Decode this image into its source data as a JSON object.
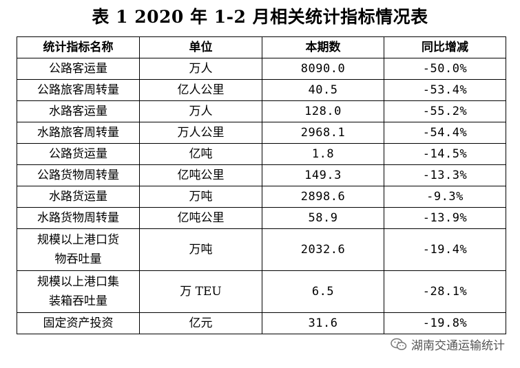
{
  "title": "表 1  2020 年 1-2 月相关统计指标情况表",
  "table": {
    "headers": [
      "统计指标名称",
      "单位",
      "本期数",
      "同比增减"
    ],
    "rows": [
      {
        "name": "公路客运量",
        "unit": "万人",
        "value": "8090.0",
        "change": "-50.0%"
      },
      {
        "name": "公路旅客周转量",
        "unit": "亿人公里",
        "value": "40.5",
        "change": "-53.4%"
      },
      {
        "name": "水路客运量",
        "unit": "万人",
        "value": "128.0",
        "change": "-55.2%"
      },
      {
        "name": "水路旅客周转量",
        "unit": "万人公里",
        "value": "2968.1",
        "change": "-54.4%"
      },
      {
        "name": "公路货运量",
        "unit": "亿吨",
        "value": "1.8",
        "change": "-14.5%"
      },
      {
        "name": "公路货物周转量",
        "unit": "亿吨公里",
        "value": "149.3",
        "change": "-13.3%"
      },
      {
        "name": "水路货运量",
        "unit": "万吨",
        "value": "2898.6",
        "change": "-9.3%"
      },
      {
        "name": "水路货物周转量",
        "unit": "亿吨公里",
        "value": "58.9",
        "change": "-13.9%"
      },
      {
        "name_line1": "规模以上港口货",
        "name_line2": "物吞吐量",
        "unit": "万吨",
        "value": "2032.6",
        "change": "-19.4%"
      },
      {
        "name_line1": "规模以上港口集",
        "name_line2": "装箱吞吐量",
        "unit": "万 TEU",
        "value": "6.5",
        "change": "-28.1%"
      },
      {
        "name": "固定资产投资",
        "unit": "亿元",
        "value": "31.6",
        "change": "-19.8%"
      }
    ]
  },
  "watermark": {
    "text": "湖南交通运输统计",
    "icon": "wechat-icon"
  }
}
